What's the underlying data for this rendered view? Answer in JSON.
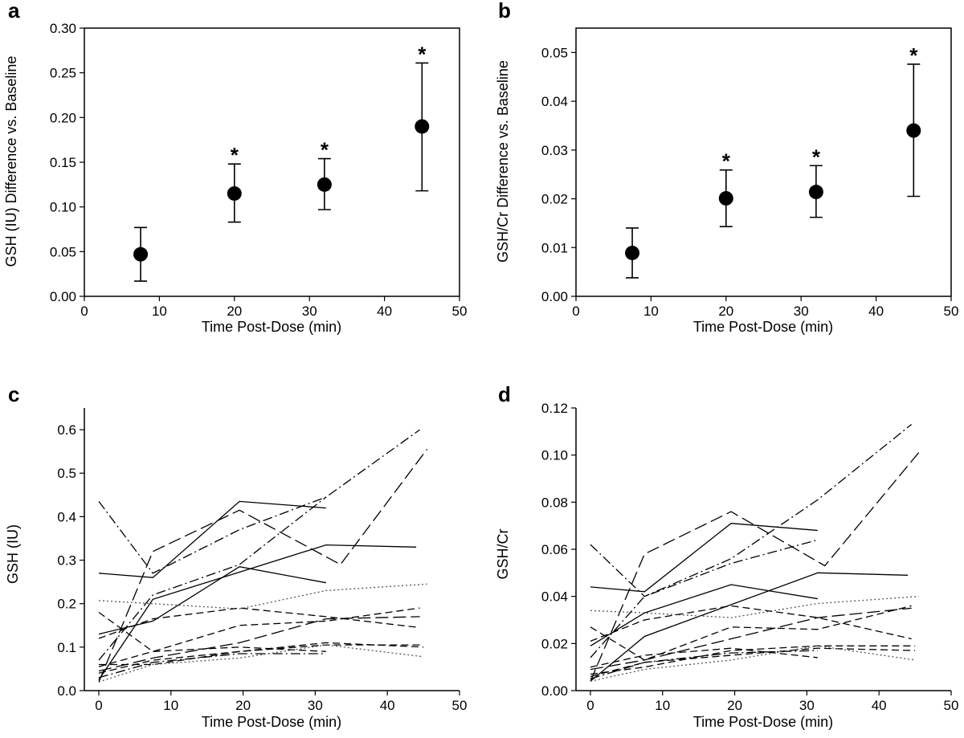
{
  "chart_data": [
    {
      "panel": "a",
      "type": "scatter",
      "xlabel": "Time Post-Dose (min)",
      "ylabel": "GSH (IU) Difference vs. Baseline",
      "xlim": [
        0,
        50
      ],
      "ylim": [
        0,
        0.3
      ],
      "xticks": [
        0,
        10,
        20,
        30,
        40,
        50
      ],
      "yticks": [
        "0.00",
        "0.05",
        "0.10",
        "0.15",
        "0.20",
        "0.25",
        "0.30"
      ],
      "points": [
        {
          "x": 7.5,
          "y": 0.047,
          "err_low": 0.017,
          "err_high": 0.077,
          "sig": ""
        },
        {
          "x": 20,
          "y": 0.115,
          "err_low": 0.083,
          "err_high": 0.148,
          "sig": "*"
        },
        {
          "x": 32,
          "y": 0.125,
          "err_low": 0.097,
          "err_high": 0.154,
          "sig": "*"
        },
        {
          "x": 45,
          "y": 0.19,
          "err_low": 0.118,
          "err_high": 0.261,
          "sig": "*"
        }
      ]
    },
    {
      "panel": "b",
      "type": "scatter",
      "xlabel": "Time Post-Dose (min)",
      "ylabel": "GSH/Cr Difference vs. Baseline",
      "xlim": [
        0,
        50
      ],
      "ylim": [
        0,
        0.055
      ],
      "xticks": [
        0,
        10,
        20,
        30,
        40,
        50
      ],
      "yticks": [
        "0.00",
        "0.01",
        "0.02",
        "0.03",
        "0.04",
        "0.05"
      ],
      "points": [
        {
          "x": 7.5,
          "y": 0.0089,
          "err_low": 0.0038,
          "err_high": 0.014,
          "sig": ""
        },
        {
          "x": 20,
          "y": 0.0201,
          "err_low": 0.0143,
          "err_high": 0.0259,
          "sig": "*"
        },
        {
          "x": 32,
          "y": 0.0214,
          "err_low": 0.0162,
          "err_high": 0.0268,
          "sig": "*"
        },
        {
          "x": 45,
          "y": 0.034,
          "err_low": 0.0205,
          "err_high": 0.0476,
          "sig": "*"
        }
      ]
    },
    {
      "panel": "c",
      "type": "line",
      "xlabel": "Time Post-Dose (min)",
      "ylabel": "GSH (IU)",
      "xlim": [
        -2,
        50
      ],
      "ylim": [
        0,
        0.65
      ],
      "xticks": [
        0,
        10,
        20,
        30,
        40,
        50
      ],
      "yticks": [
        "0.0",
        "0.1",
        "0.2",
        "0.3",
        "0.4",
        "0.5",
        "0.6"
      ],
      "series": [
        {
          "dash": "solid",
          "points": [
            [
              0,
              0.27
            ],
            [
              7.5,
              0.26
            ],
            [
              19.5,
              0.435
            ],
            [
              31.5,
              0.42
            ]
          ]
        },
        {
          "dash": "solid",
          "points": [
            [
              0,
              0.13
            ],
            [
              7.5,
              0.16
            ],
            [
              19.5,
              0.285
            ],
            [
              31.5,
              0.248
            ]
          ]
        },
        {
          "dash": "solid",
          "points": [
            [
              0,
              0.025
            ],
            [
              7.5,
              0.21
            ],
            [
              31.5,
              0.335
            ],
            [
              44,
              0.33
            ]
          ]
        },
        {
          "dash": "longdash",
          "points": [
            [
              0,
              0.02
            ],
            [
              7.5,
              0.32
            ],
            [
              19.5,
              0.415
            ],
            [
              33.5,
              0.29
            ],
            [
              45.5,
              0.555
            ]
          ]
        },
        {
          "dash": "dashdot",
          "points": [
            [
              0,
              0.435
            ],
            [
              7.5,
              0.27
            ],
            [
              19.5,
              0.37
            ],
            [
              31.5,
              0.445
            ],
            [
              44.5,
              0.6
            ]
          ]
        },
        {
          "dash": "dashdot",
          "points": [
            [
              0,
              0.07
            ],
            [
              7.5,
              0.22
            ],
            [
              19.5,
              0.29
            ],
            [
              31.5,
              0.445
            ]
          ]
        },
        {
          "dash": "dotted",
          "points": [
            [
              0,
              0.207
            ],
            [
              7.5,
              0.2
            ],
            [
              19.5,
              0.188
            ],
            [
              31.5,
              0.23
            ],
            [
              45.5,
              0.245
            ]
          ]
        },
        {
          "dash": "dashed",
          "points": [
            [
              0,
              0.12
            ],
            [
              7.5,
              0.165
            ],
            [
              19.5,
              0.19
            ],
            [
              31.5,
              0.17
            ],
            [
              44.5,
              0.145
            ]
          ]
        },
        {
          "dash": "dashed",
          "points": [
            [
              0,
              0.18
            ],
            [
              7.5,
              0.09
            ],
            [
              19.5,
              0.15
            ],
            [
              31.5,
              0.16
            ],
            [
              44.5,
              0.19
            ]
          ]
        },
        {
          "dash": "longdash",
          "points": [
            [
              0,
              0.045
            ],
            [
              7.5,
              0.075
            ],
            [
              19.5,
              0.11
            ],
            [
              31.5,
              0.165
            ],
            [
              44.5,
              0.17
            ]
          ]
        },
        {
          "dash": "dashed",
          "points": [
            [
              0,
              0.055
            ],
            [
              7.5,
              0.09
            ],
            [
              19.5,
              0.1
            ],
            [
              31.5,
              0.09
            ]
          ]
        },
        {
          "dash": "dashed",
          "points": [
            [
              0,
              0.06
            ],
            [
              7.5,
              0.06
            ],
            [
              19.5,
              0.09
            ],
            [
              31.5,
              0.105
            ],
            [
              45,
              0.105
            ]
          ]
        },
        {
          "dash": "dashdot",
          "points": [
            [
              0,
              0.03
            ],
            [
              7.5,
              0.065
            ],
            [
              19.5,
              0.085
            ],
            [
              31.5,
              0.085
            ]
          ]
        },
        {
          "dash": "dashed",
          "points": [
            [
              0,
              0.04
            ],
            [
              7.5,
              0.07
            ],
            [
              19.5,
              0.09
            ],
            [
              31.5,
              0.11
            ],
            [
              45,
              0.1
            ]
          ]
        },
        {
          "dash": "dotted",
          "points": [
            [
              0,
              0.02
            ],
            [
              7.5,
              0.06
            ],
            [
              19.5,
              0.075
            ],
            [
              31.5,
              0.105
            ],
            [
              45,
              0.078
            ]
          ]
        }
      ]
    },
    {
      "panel": "d",
      "type": "line",
      "xlabel": "Time Post-Dose (min)",
      "ylabel": "GSH/Cr",
      "xlim": [
        -2,
        50
      ],
      "ylim": [
        0,
        0.12
      ],
      "xticks": [
        0,
        10,
        20,
        30,
        40,
        50
      ],
      "yticks": [
        "0.00",
        "0.02",
        "0.04",
        "0.06",
        "0.08",
        "0.10",
        "0.12"
      ],
      "series": [
        {
          "dash": "solid",
          "points": [
            [
              0,
              0.044
            ],
            [
              7.5,
              0.042
            ],
            [
              19.5,
              0.071
            ],
            [
              31.5,
              0.068
            ]
          ]
        },
        {
          "dash": "solid",
          "points": [
            [
              0,
              0.019
            ],
            [
              7.5,
              0.033
            ],
            [
              19.5,
              0.045
            ],
            [
              31.5,
              0.039
            ]
          ]
        },
        {
          "dash": "solid",
          "points": [
            [
              0,
              0.004
            ],
            [
              7.5,
              0.023
            ],
            [
              31.5,
              0.05
            ],
            [
              44,
              0.049
            ]
          ]
        },
        {
          "dash": "longdash",
          "points": [
            [
              0,
              0.004
            ],
            [
              7.5,
              0.058
            ],
            [
              19.5,
              0.076
            ],
            [
              32.5,
              0.053
            ],
            [
              45.5,
              0.101
            ]
          ]
        },
        {
          "dash": "dashdot",
          "points": [
            [
              0,
              0.062
            ],
            [
              7.5,
              0.04
            ],
            [
              19.5,
              0.056
            ],
            [
              31.5,
              0.081
            ],
            [
              44.5,
              0.113
            ]
          ]
        },
        {
          "dash": "dashdot",
          "points": [
            [
              0,
              0.014
            ],
            [
              7.5,
              0.04
            ],
            [
              19.5,
              0.054
            ],
            [
              31.5,
              0.064
            ]
          ]
        },
        {
          "dash": "dotted",
          "points": [
            [
              0,
              0.034
            ],
            [
              7.5,
              0.033
            ],
            [
              19.5,
              0.031
            ],
            [
              31.5,
              0.037
            ],
            [
              45.5,
              0.04
            ]
          ]
        },
        {
          "dash": "dashed",
          "points": [
            [
              0,
              0.021
            ],
            [
              7.5,
              0.03
            ],
            [
              19.5,
              0.036
            ],
            [
              31.5,
              0.031
            ],
            [
              44.5,
              0.022
            ]
          ]
        },
        {
          "dash": "dashed",
          "points": [
            [
              0,
              0.027
            ],
            [
              7.5,
              0.013
            ],
            [
              19.5,
              0.027
            ],
            [
              31.5,
              0.026
            ],
            [
              44.5,
              0.036
            ]
          ]
        },
        {
          "dash": "longdash",
          "points": [
            [
              0,
              0.009
            ],
            [
              7.5,
              0.013
            ],
            [
              19.5,
              0.022
            ],
            [
              31.5,
              0.031
            ],
            [
              44.5,
              0.035
            ]
          ]
        },
        {
          "dash": "dashed",
          "points": [
            [
              0,
              0.01
            ],
            [
              7.5,
              0.015
            ],
            [
              19.5,
              0.018
            ],
            [
              31.5,
              0.014
            ]
          ]
        },
        {
          "dash": "dashed",
          "points": [
            [
              0,
              0.007
            ],
            [
              7.5,
              0.01
            ],
            [
              19.5,
              0.017
            ],
            [
              31.5,
              0.019
            ],
            [
              45,
              0.019
            ]
          ]
        },
        {
          "dash": "dashdot",
          "points": [
            [
              0,
              0.005
            ],
            [
              7.5,
              0.012
            ],
            [
              19.5,
              0.016
            ],
            [
              31.5,
              0.017
            ]
          ]
        },
        {
          "dash": "dashed",
          "points": [
            [
              0,
              0.006
            ],
            [
              7.5,
              0.012
            ],
            [
              19.5,
              0.015
            ],
            [
              31.5,
              0.018
            ],
            [
              45,
              0.017
            ]
          ]
        },
        {
          "dash": "dotted",
          "points": [
            [
              0,
              0.004
            ],
            [
              7.5,
              0.009
            ],
            [
              19.5,
              0.013
            ],
            [
              31.5,
              0.019
            ],
            [
              45,
              0.013
            ]
          ]
        }
      ]
    }
  ]
}
